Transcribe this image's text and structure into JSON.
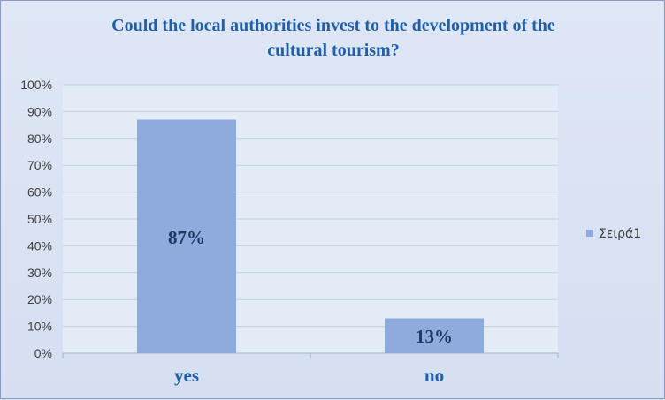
{
  "chart_data": {
    "type": "bar",
    "title": "Could the local authorities invest to the development of the cultural tourism?",
    "title_lines": [
      "Could the local authorities invest to the development of the",
      "cultural tourism?"
    ],
    "categories": [
      "yes",
      "no"
    ],
    "series": [
      {
        "name": "Σειρά1",
        "values": [
          87,
          13
        ],
        "color": "#8faadc"
      }
    ],
    "data_labels": [
      "87%",
      "13%"
    ],
    "yticks": [
      "0%",
      "10%",
      "20%",
      "30%",
      "40%",
      "50%",
      "60%",
      "70%",
      "80%",
      "90%",
      "100%"
    ],
    "ylim": [
      0,
      100
    ],
    "xlabel": "",
    "ylabel": "",
    "grid": true,
    "legend_position": "right",
    "colors": {
      "title": "#1f5fa8",
      "category_labels": "#1f5fa8",
      "data_labels": "#1f3864",
      "plot_background": "#e3ebf7",
      "gridline": "#c6cfdd"
    }
  }
}
